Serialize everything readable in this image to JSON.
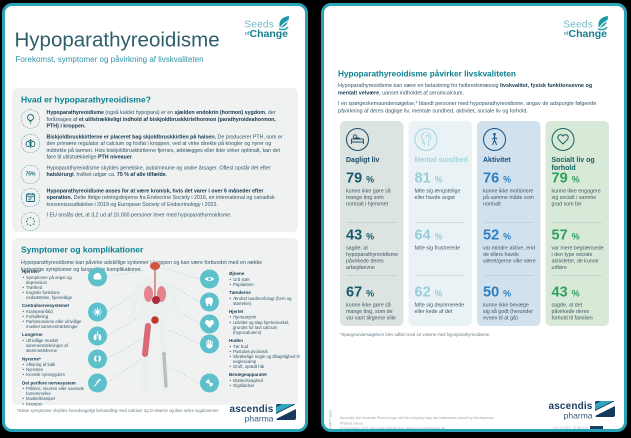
{
  "brand": {
    "seeds": "Seeds",
    "of": "of",
    "change": "Change"
  },
  "footer_brand": {
    "name": "ascendis",
    "sub": "pharma"
  },
  "page1": {
    "title": "Hypoparathyreoidisme",
    "subtitle": "Forekomst, symptomer og påvirkning af livskvaliteten",
    "what": {
      "heading": "Hvad er hypoparathyreoidisme?",
      "items": [
        {
          "icon": "lightbulb-icon",
          "text": "**Hypoparathyreoidisme** (også kaldet hypopara) er en **sjælden endokrin (hormon) sygdom**, der forårsages af **et utilstrækkeligt indhold af biskjoldbruskkirtelhormon (parathyroideahormon, PTH) i kroppen.**"
        },
        {
          "icon": "thyroid-icon",
          "text": "**Biskjoldbruskkirtlerne er placeret bag skjoldbruskkirtlen på halsen.** De producerer PTH, som er den primære regulator af calcium og fosfat i kroppen, ved at virke direkte på knogler og nyrer og indirekte på tarmen. Hvis biskjoldbruskkirtlerne fjernes, ødelægges eller ikke virker optimalt, kan det føre til utilstrækkelige **PTH niveauer**."
        },
        {
          "icon": "75-percent-icon",
          "label": "75%",
          "text": "Hypoparathyreoidisme skyldes genetiske, autoimmune og andre årsager. Oftest opstår det efter **halskirurgi**, hvilket udgør ca. **75 % af alle tilfælde**."
        },
        {
          "icon": "calendar-icon",
          "text": "**Hypoparathyreoidisme anses for at være kronisk, hvis det varer i over 6 måneder efter operation.** Dette ifølge retningslinjerne fra Endocrine Society i 2016, en international og canadisk konsensusudtalelse i 2019 og European Society of Endocrinology i 2022."
        },
        {
          "icon": "eu-stars-icon",
          "text": "I EU anslås det, at 3,2 ud af 10.000 personer lever med hypoparathyreoidisme."
        }
      ]
    },
    "symptoms": {
      "heading": "Symptomer og komplikationer",
      "intro": "Hypoparathyreoidisme kan påvirke adskillige systemer i kroppen og kan være forbundet med en række kortvarige symptomer og langvarige komplikationer.",
      "left": [
        {
          "title": "Hjernen",
          "items": [
            "Symptomer på angst og depression",
            "Træthed",
            "Kognitiv funktions nedsættelse, hjernetåge"
          ]
        },
        {
          "title": "Centralnervesystemet",
          "items": [
            "Krampeanfald",
            "Forkalkning",
            "Parkinsonisme eller ufrivillige muskel sammentrækninger"
          ]
        },
        {
          "title": "Lungerne",
          "items": [
            "Ufrivillige muskel sammentrækninger af stemmelæberne"
          ]
        },
        {
          "title": "Nyrerne*",
          "items": [
            "Aflejring af kalk",
            "Nyresten",
            "Kronisk nyresygdom"
          ]
        },
        {
          "title": "Det perifere nervesystem",
          "items": [
            "Prikken, snurren eller sovende fornemmelse",
            "Muskelkramper",
            "Kramper"
          ]
        }
      ],
      "right": [
        {
          "title": "Øjnene",
          "items": [
            "Grå stær",
            "Papilødem"
          ]
        },
        {
          "title": "Tænderne",
          "items": [
            "Ændret tandmorfologi (form og størrelse)"
          ]
        },
        {
          "title": "Hjertet",
          "items": [
            "Hjertearytmi",
            "Udvidet og slap hjertemuskel, grundet for lavt calcium (hypocalcæmi)"
          ]
        },
        {
          "title": "Huden",
          "items": [
            "Tør hud",
            "Pustuløs psoriasis",
            "Skrøbelige negle og tilbøjelighed til neglesvamp",
            "Groft, sprødt hår"
          ]
        },
        {
          "title": "Bevægeapparatet",
          "items": [
            "Muskelsvaghed",
            "Gigtlidelser"
          ]
        }
      ]
    },
    "footnote": "*Disse symptomer skyldes hovedsageligt behandling med calcium og D-vitamin og ikke selve sygdommen"
  },
  "page2": {
    "heading": "Hypoparathyreoidisme påvirker livskvaliteten",
    "para1": "Hypoparathyreoidisme kan være en belastning for helbredsmæssig **livskvalitet, fysisk funktionsevne og mentalt velvære**, uanset indholdet af serumcalcium.",
    "para2": "I en spørgeskemaundersøgelse,* blandt personer med hypoparathyreoidisme, angav de adspurgte følgende påvirkning af deres daglige liv, mentale sundhed, aktivitet, sociale liv og forhold.",
    "cards": [
      {
        "title": "Dagligt liv",
        "icon": "bed-icon",
        "stats": [
          {
            "value": "79",
            "unit": "%",
            "text": "kunne ikke gøre så mange ting som normalt i hjemmet"
          },
          {
            "value": "43",
            "unit": "%",
            "text": "sagde, at hypoparathyreoidisme påvirkede deres arbejdsevne"
          },
          {
            "value": "67",
            "unit": "%",
            "text": "kunne ikke gøre så mange ting, som de var vant til/gerne ville"
          }
        ]
      },
      {
        "title": "Mental sundhed",
        "icon": "mind-icon",
        "stats": [
          {
            "value": "81",
            "unit": "%",
            "text": "følte sig ængstelige eller havde angst"
          },
          {
            "value": "64",
            "unit": "%",
            "text": "følte sig frustrerede"
          },
          {
            "value": "62",
            "unit": "%",
            "text": "følte sig deprimerede eller kede af det"
          }
        ]
      },
      {
        "title": "Aktivitet",
        "icon": "walking-icon",
        "stats": [
          {
            "value": "76",
            "unit": "%",
            "text": "kunne ikke motionere på samme måde som normalt"
          },
          {
            "value": "52",
            "unit": "%",
            "text": "var mindre aktive, end de ellers havde været/gerne ville være"
          },
          {
            "value": "50",
            "unit": "%",
            "text": "kunne ikke bevæge sig så godt (herunder evnen til at gå)"
          }
        ]
      },
      {
        "title": "Socialt liv og forhold",
        "icon": "heart-icon",
        "stats": [
          {
            "value": "79",
            "unit": "%",
            "text": "kunne ikke engagere sig socialt i samme grad som før"
          },
          {
            "value": "57",
            "unit": "%",
            "text": "var mere begrænsede i den type sociale aktiviteter, de kunne udføre"
          },
          {
            "value": "43",
            "unit": "%",
            "text": "sagde, at det påvirkede deres forhold til familien"
          }
        ]
      }
    ],
    "footnote": "*Spørgeundersøgelsen blev udført med 42 voksne med hypoparathyreoidisme.",
    "fineprint1": "Ascendis, the Ascendis Pharma logo and the company logo are trademarks owned by the Ascendis Pharma Group.",
    "fineprint2": "© December 2023, Ascendis Pharma A/S. www.ascendispharma.dk",
    "side_code": "DA-HPT-2023"
  }
}
